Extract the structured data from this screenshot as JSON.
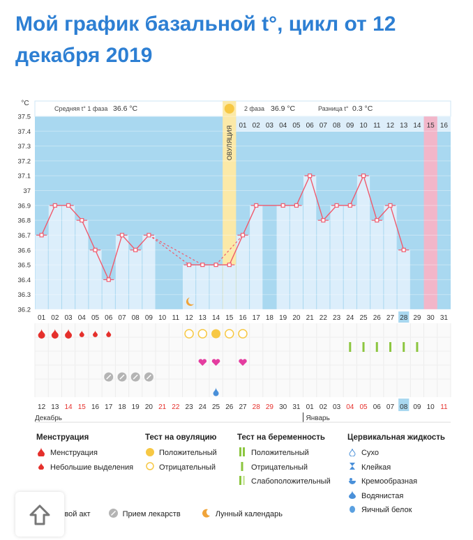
{
  "title": "Мой график базальной t°, цикл от 12 декабря 2019",
  "chart_data": {
    "type": "line",
    "y_unit": "°C",
    "ylim": [
      36.2,
      37.5
    ],
    "y_ticks": [
      "37.5",
      "37.4",
      "37.3",
      "37.2",
      "37.1",
      "37",
      "36.9",
      "36.8",
      "36.7",
      "36.6",
      "36.5",
      "36.4",
      "36.3",
      "36.2"
    ],
    "phase1_label": "Средняя t° 1 фаза",
    "phase1_value": "36.6 °C",
    "phase2_label": "2 фаза",
    "phase2_value": "36.9 °C",
    "diff_label": "Разница t°",
    "diff_value": "0.3 °C",
    "ovulation_label": "ОВУЛЯЦИЯ",
    "cycle_days": [
      "01",
      "02",
      "03",
      "04",
      "05",
      "06",
      "07",
      "08",
      "09",
      "10",
      "11",
      "12",
      "13",
      "14",
      "15",
      "16",
      "17",
      "18",
      "19",
      "20",
      "21",
      "22",
      "23",
      "24",
      "25",
      "26",
      "27",
      "28",
      "29",
      "30",
      "31"
    ],
    "phase2_days": [
      "01",
      "02",
      "03",
      "04",
      "05",
      "06",
      "07",
      "08",
      "09",
      "10",
      "11",
      "12",
      "13",
      "14",
      "15",
      "16"
    ],
    "temperatures": [
      36.7,
      36.9,
      36.9,
      36.8,
      36.6,
      36.4,
      36.7,
      36.6,
      36.7,
      null,
      null,
      36.5,
      36.5,
      36.5,
      36.5,
      36.7,
      36.9,
      null,
      36.9,
      36.9,
      37.1,
      36.8,
      36.9,
      36.9,
      37.1,
      36.8,
      36.9,
      36.6,
      null,
      null,
      null
    ],
    "dashed_gaps": [
      [
        9,
        12
      ],
      [
        14,
        15
      ]
    ],
    "highlight_cycle_day": "28",
    "dates": [
      "12",
      "13",
      "14",
      "15",
      "16",
      "17",
      "18",
      "19",
      "20",
      "21",
      "22",
      "23",
      "24",
      "25",
      "26",
      "27",
      "28",
      "29",
      "30",
      "31",
      "01",
      "02",
      "03",
      "04",
      "05",
      "06",
      "07",
      "08",
      "09",
      "10",
      "11"
    ],
    "weekend_dates": [
      2,
      3,
      9,
      10,
      16,
      17,
      23,
      24,
      30
    ],
    "highlight_date": "08",
    "month_dec": "Декабрь",
    "month_jan": "Январь",
    "menstruation": [
      "big",
      "big",
      "big",
      "small",
      "small",
      "small"
    ],
    "ovulation_tests": {
      "11": "negative",
      "12": "negative",
      "13": "positive",
      "14": "negative",
      "15": "negative"
    },
    "pregnancy_tests": [
      23,
      24,
      25,
      26,
      27,
      28
    ],
    "hearts": [
      12,
      13,
      15
    ],
    "medication": [
      4,
      5,
      6,
      7
    ],
    "cervical": [
      13
    ],
    "moon": [
      12
    ]
  },
  "legend": {
    "menstruation": {
      "header": "Менструация",
      "items": [
        "Менструация",
        "Небольшие выделения"
      ]
    },
    "ovulation_test": {
      "header": "Тест на овуляцию",
      "items": [
        "Положительный",
        "Отрицательный"
      ]
    },
    "pregnancy_test": {
      "header": "Тест на беременность",
      "items": [
        "Положительный",
        "Отрицательный",
        "Слабоположительный"
      ]
    },
    "cervical_fluid": {
      "header": "Цервикальная жидкость",
      "items": [
        "Сухо",
        "Клейкая",
        "Кремообразная",
        "Водянистая",
        "Яичный белок"
      ]
    },
    "bottom": {
      "sex": "Половой акт",
      "meds": "Прием лекарств",
      "moon": "Лунный календарь"
    }
  },
  "colors": {
    "title": "#2d7fd3",
    "bg_blue": "#a9d8f0",
    "bar": "#dceefb",
    "ovulation": "#fbe9a8",
    "period_day": "#f2b6c9",
    "line": "#f05a6d",
    "red": "#e5302c",
    "yellow": "#f7c844",
    "pink": "#e43da0",
    "green": "#8cc63f"
  }
}
